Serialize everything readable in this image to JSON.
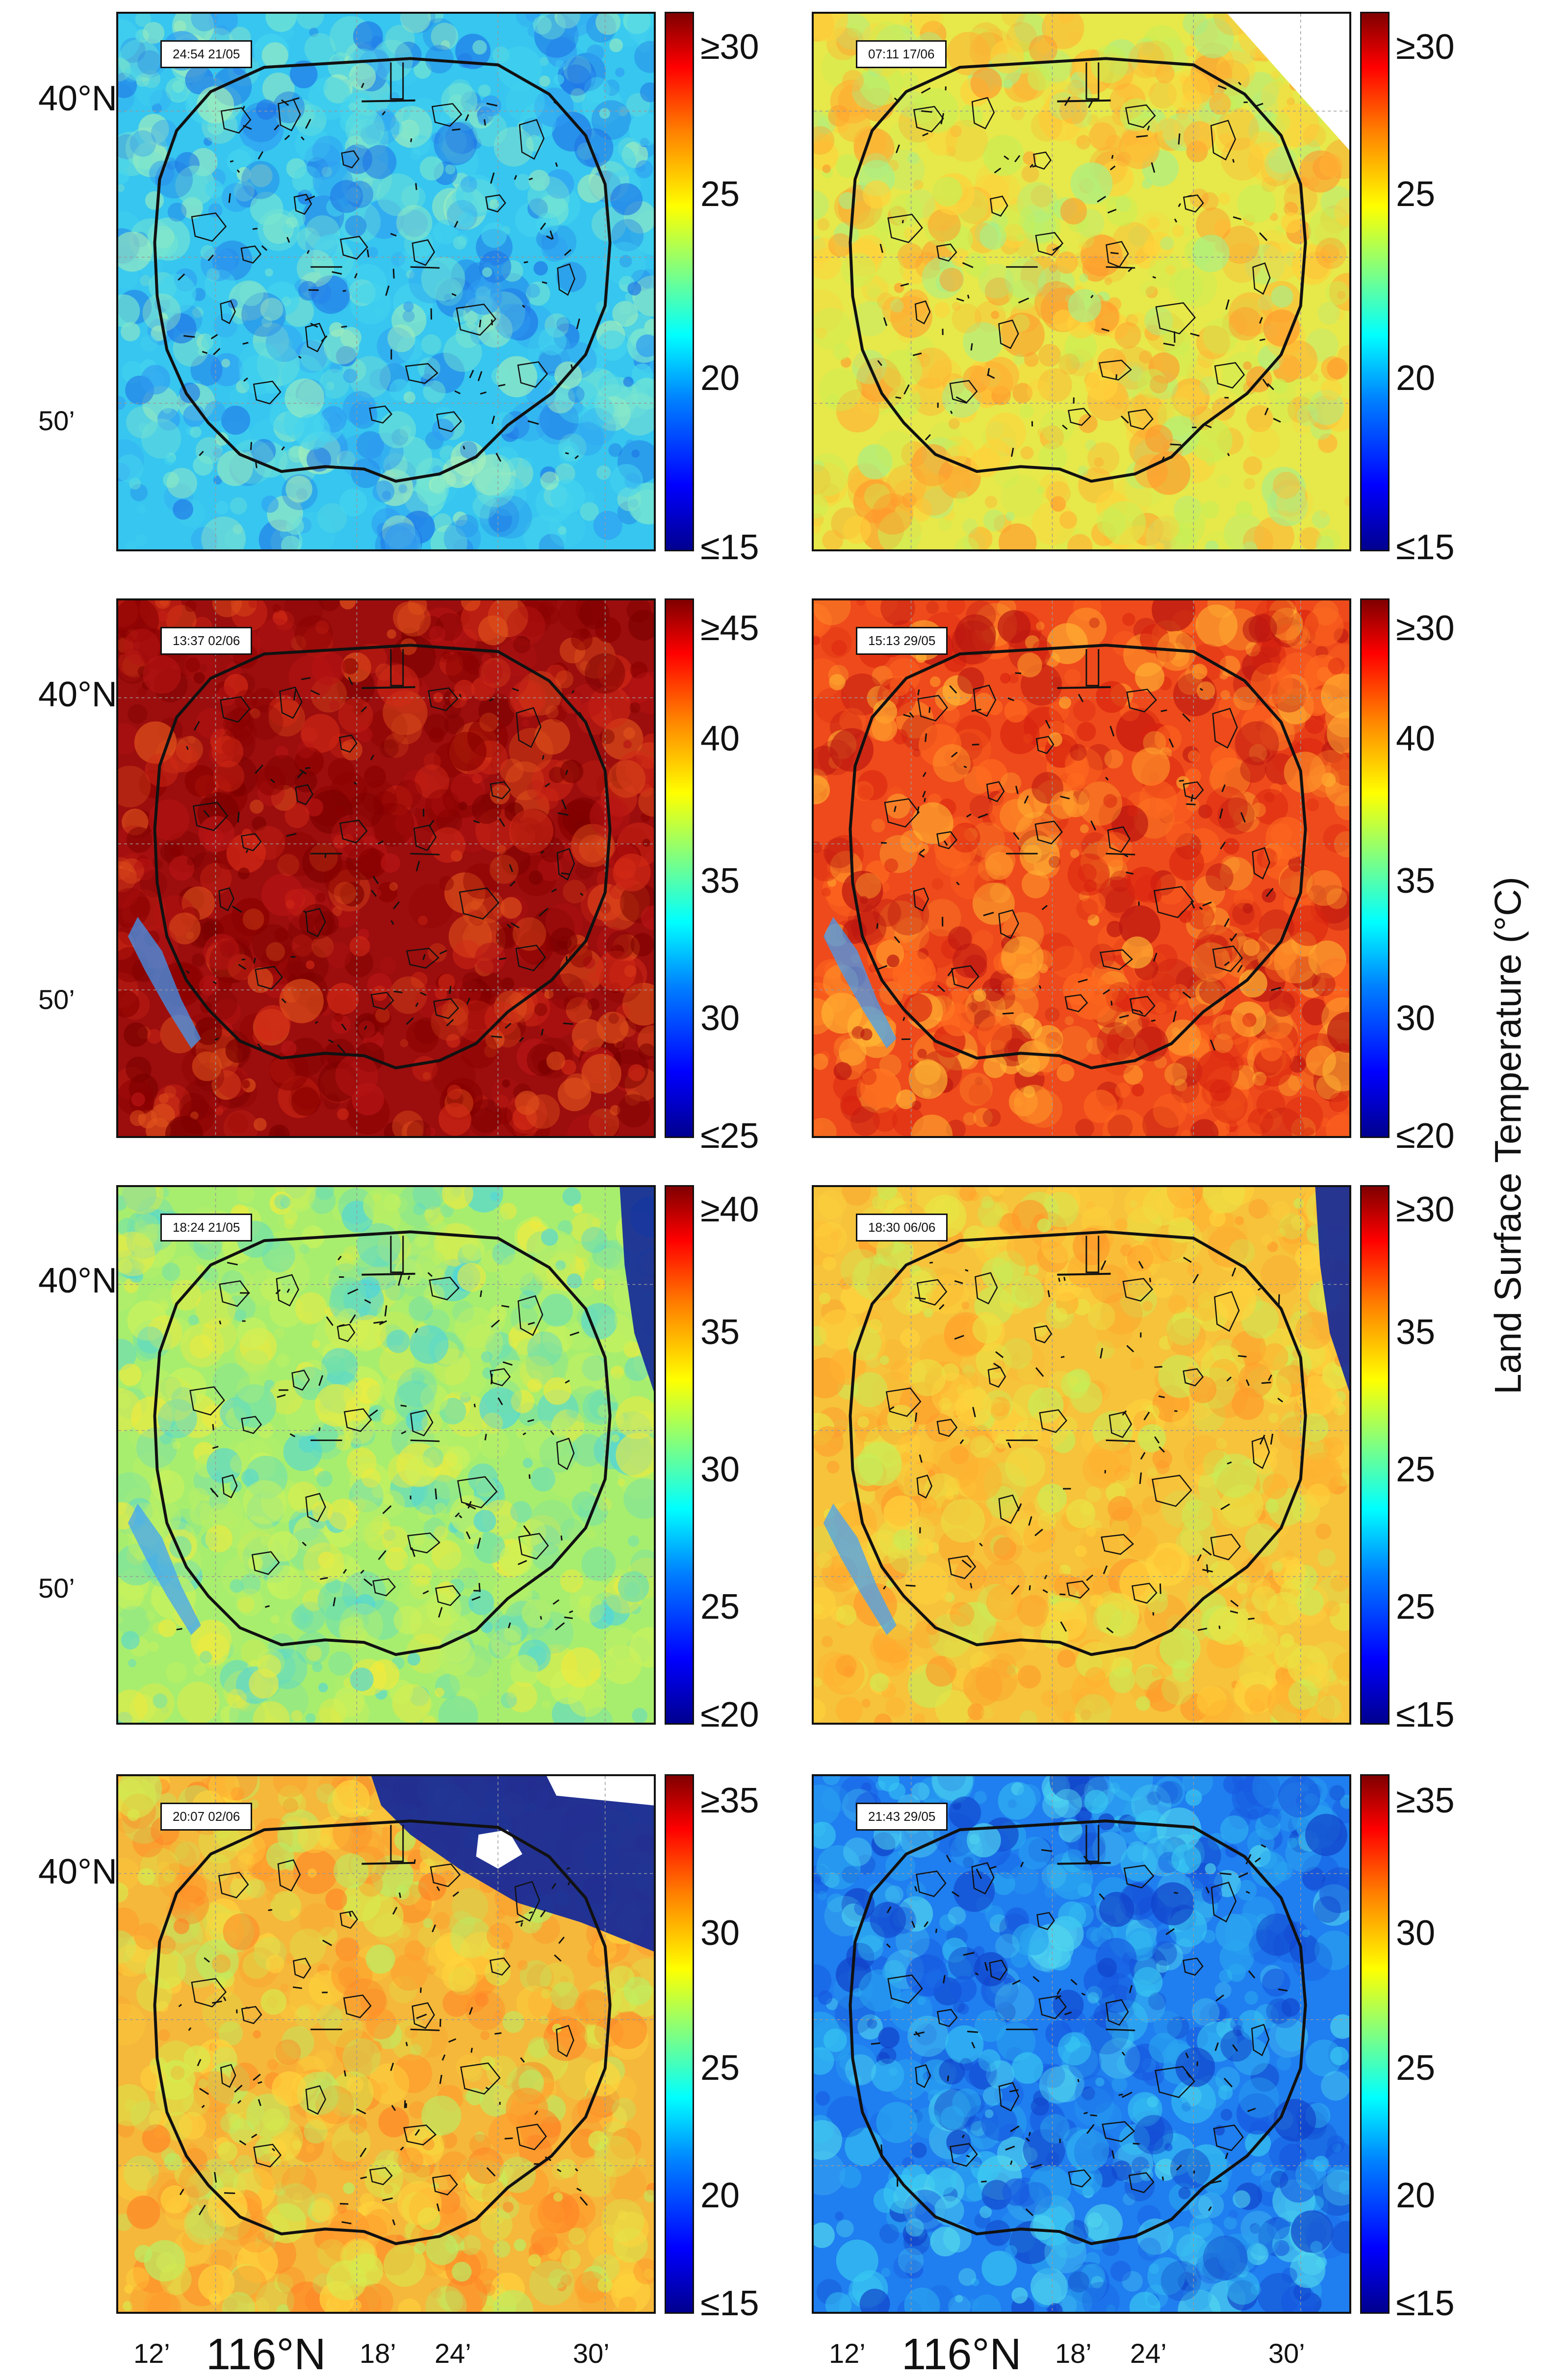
{
  "panels": [
    {
      "timestamp": "24:54 21/05",
      "scale_labels": [
        "≥30",
        "25",
        "20",
        "≤15"
      ],
      "fill": "#36c6f0",
      "palette": [
        "#2f9cf2",
        "#45d4ee",
        "#78e6d0",
        "#a8f0b8",
        "#1f74e6"
      ]
    },
    {
      "timestamp": "07:11 17/06",
      "scale_labels": [
        "≥30",
        "25",
        "20",
        "≤15"
      ],
      "fill": "#e7e84a",
      "palette": [
        "#ffd23a",
        "#c9ef55",
        "#ffb233",
        "#a8ef88",
        "#ff9a2d"
      ]
    },
    {
      "timestamp": "13:37 02/06",
      "scale_labels": [
        "≥45",
        "40",
        "35",
        "30",
        "≤25"
      ],
      "fill": "#9c0d0d",
      "palette": [
        "#8a0000",
        "#b81414",
        "#d32a16",
        "#7a0000",
        "#e0521b"
      ]
    },
    {
      "timestamp": "15:13 29/05",
      "scale_labels": [
        "≥30",
        "40",
        "35",
        "30",
        "≤20"
      ],
      "fill": "#ef4a1b",
      "palette": [
        "#ff6a1f",
        "#d8220f",
        "#ff9a2b",
        "#b81410",
        "#ffb733"
      ]
    },
    {
      "timestamp": "18:24 21/05",
      "scale_labels": [
        "≥40",
        "35",
        "30",
        "25",
        "≤20"
      ],
      "fill": "#a8ee6e",
      "palette": [
        "#cdf25a",
        "#6fe0ae",
        "#f2ea3c",
        "#4ed5dc",
        "#b8ef66"
      ]
    },
    {
      "timestamp": "18:30 06/06",
      "scale_labels": [
        "≥30",
        "35",
        "25",
        "25",
        "≤15"
      ],
      "fill": "#f6c33b",
      "palette": [
        "#ffb12f",
        "#e8e545",
        "#ff9a2a",
        "#c7ee58",
        "#ffd43c"
      ]
    },
    {
      "timestamp": "20:07 02/06",
      "scale_labels": [
        "≥35",
        "30",
        "25",
        "20",
        "≤15"
      ],
      "fill": "#f5b83a",
      "palette": [
        "#ff9a2b",
        "#ffd53c",
        "#d6ec4e",
        "#ff8426",
        "#b8ef66"
      ]
    },
    {
      "timestamp": "21:43 29/05",
      "scale_labels": [
        "≥35",
        "30",
        "25",
        "20",
        "≤15"
      ],
      "fill": "#1f7ef0",
      "palette": [
        "#1658e0",
        "#2aa7f0",
        "#38c8f2",
        "#1040c8",
        "#52d8ee"
      ]
    }
  ],
  "y_axis": {
    "north": "40°N",
    "minutes": "50’"
  },
  "x_axis": {
    "ticks": [
      "12’",
      "116°N",
      "18’",
      "24’",
      "30’"
    ]
  },
  "colorbar_title": "Land Surface Temperature (°C)",
  "colors": {
    "line": "#111111",
    "grid": "#999999",
    "snow": "#ffffff",
    "cold_band": "#10259a"
  }
}
